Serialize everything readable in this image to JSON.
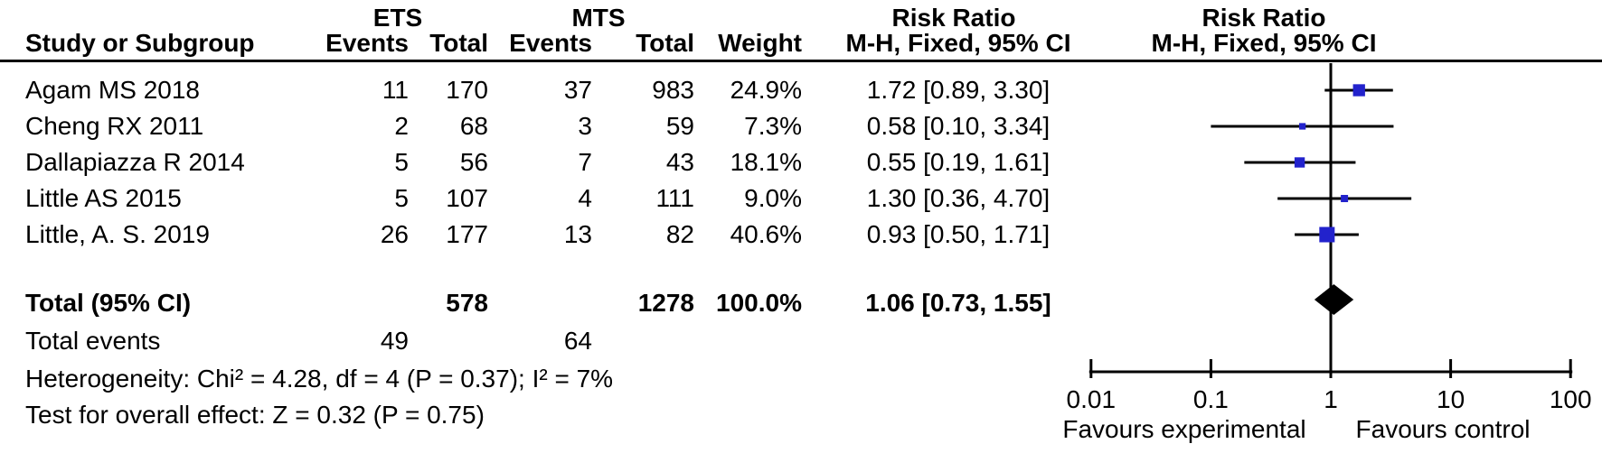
{
  "table": {
    "group1": "ETS",
    "group2": "MTS",
    "col_headers": {
      "study": "Study or Subgroup",
      "events": "Events",
      "total": "Total",
      "weight": "Weight"
    },
    "rr_header": "Risk Ratio",
    "mh_header": "M-H, Fixed, 95% CI",
    "rows": [
      {
        "study": "Agam MS 2018",
        "e1": "11",
        "t1": "170",
        "e2": "37",
        "t2": "983",
        "weight": "24.9%",
        "ci": "1.72 [0.89, 3.30]"
      },
      {
        "study": "Cheng RX 2011",
        "e1": "2",
        "t1": "68",
        "e2": "3",
        "t2": "59",
        "weight": "7.3%",
        "ci": "0.58 [0.10, 3.34]"
      },
      {
        "study": "Dallapiazza R 2014",
        "e1": "5",
        "t1": "56",
        "e2": "7",
        "t2": "43",
        "weight": "18.1%",
        "ci": "0.55 [0.19, 1.61]"
      },
      {
        "study": "Little AS 2015",
        "e1": "5",
        "t1": "107",
        "e2": "4",
        "t2": "111",
        "weight": "9.0%",
        "ci": "1.30 [0.36, 4.70]"
      },
      {
        "study": "Little, A. S. 2019",
        "e1": "26",
        "t1": "177",
        "e2": "13",
        "t2": "82",
        "weight": "40.6%",
        "ci": "0.93 [0.50, 1.71]"
      }
    ],
    "total_row": {
      "label": "Total (95% CI)",
      "t1": "578",
      "t2": "1278",
      "weight": "100.0%",
      "ci": "1.06 [0.73, 1.55]"
    },
    "total_events": {
      "label": "Total events",
      "e1": "49",
      "e2": "64"
    },
    "heterogeneity": "Heterogeneity: Chi² = 4.28, df = 4 (P = 0.37); I² = 7%",
    "overall_effect": "Test for overall effect: Z = 0.32 (P = 0.75)"
  },
  "chart_data": {
    "type": "forest",
    "effect_measure": "Risk Ratio",
    "method": "M-H, Fixed, 95% CI",
    "x_scale": "log10",
    "axis": {
      "ticks": [
        0.01,
        0.1,
        1,
        10,
        100
      ],
      "range": [
        0.01,
        100
      ],
      "null_line": 1
    },
    "studies": [
      {
        "label": "Agam MS 2018",
        "rr": 1.72,
        "ci_low": 0.89,
        "ci_high": 3.3,
        "weight_pct": 24.9
      },
      {
        "label": "Cheng RX 2011",
        "rr": 0.58,
        "ci_low": 0.1,
        "ci_high": 3.34,
        "weight_pct": 7.3
      },
      {
        "label": "Dallapiazza R 2014",
        "rr": 0.55,
        "ci_low": 0.19,
        "ci_high": 1.61,
        "weight_pct": 18.1
      },
      {
        "label": "Little AS 2015",
        "rr": 1.3,
        "ci_low": 0.36,
        "ci_high": 4.7,
        "weight_pct": 9.0
      },
      {
        "label": "Little, A. S. 2019",
        "rr": 0.93,
        "ci_low": 0.5,
        "ci_high": 1.71,
        "weight_pct": 40.6
      }
    ],
    "total": {
      "rr": 1.06,
      "ci_low": 0.73,
      "ci_high": 1.55
    },
    "favours_left": "Favours experimental",
    "favours_right": "Favours control",
    "marker_color": "#2222cc",
    "line_color": "#000000"
  }
}
